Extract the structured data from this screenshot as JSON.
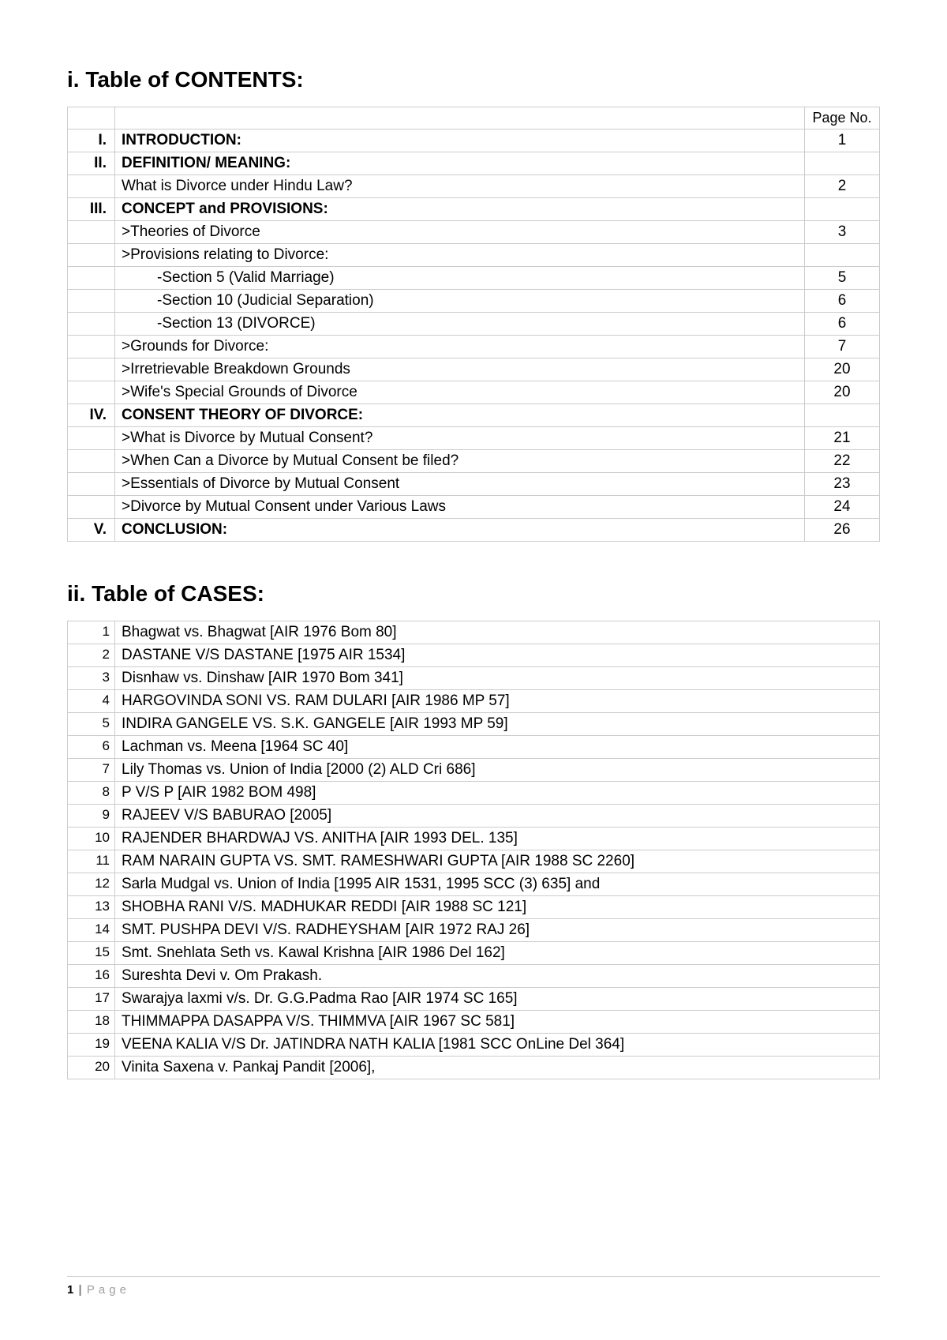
{
  "headings": {
    "toc": "i. Table of CONTENTS:",
    "cases": "ii. Table of CASES:"
  },
  "toc": {
    "pageHeaderLabel": "Page No.",
    "rows": [
      {
        "num": "I.",
        "title": "INTRODUCTION:",
        "page": "1",
        "bold": true
      },
      {
        "num": "II.",
        "title": "DEFINITION/ MEANING:",
        "page": "",
        "bold": true
      },
      {
        "num": "",
        "title": "What is Divorce under Hindu Law?",
        "page": "2",
        "bold": false
      },
      {
        "num": "III.",
        "title": "CONCEPT and PROVISIONS:",
        "page": "",
        "bold": true
      },
      {
        "num": "",
        "title": ">Theories of Divorce",
        "page": "3",
        "bold": false
      },
      {
        "num": "",
        "title": ">Provisions relating to Divorce:",
        "page": "",
        "bold": false
      },
      {
        "num": "",
        "title": "-Section 5 (Valid Marriage)",
        "page": "5",
        "bold": false,
        "indent": true
      },
      {
        "num": "",
        "title": "-Section 10 (Judicial Separation)",
        "page": "6",
        "bold": false,
        "indent": true
      },
      {
        "num": "",
        "title": "-Section 13 (DIVORCE)",
        "page": "6",
        "bold": false,
        "indent": true
      },
      {
        "num": "",
        "title": ">Grounds for Divorce:",
        "page": "7",
        "bold": false
      },
      {
        "num": "",
        "title": ">Irretrievable Breakdown Grounds",
        "page": "20",
        "bold": false
      },
      {
        "num": "",
        "title": ">Wife's Special Grounds of Divorce",
        "page": "20",
        "bold": false
      },
      {
        "num": "IV.",
        "title": "CONSENT THEORY OF DIVORCE:",
        "page": "",
        "bold": true
      },
      {
        "num": "",
        "title": ">What is Divorce by Mutual Consent?",
        "page": "21",
        "bold": false
      },
      {
        "num": "",
        "title": ">When Can a Divorce by Mutual Consent be filed?",
        "page": "22",
        "bold": false
      },
      {
        "num": "",
        "title": ">Essentials of Divorce by Mutual Consent",
        "page": "23",
        "bold": false
      },
      {
        "num": "",
        "title": ">Divorce by Mutual Consent under Various Laws",
        "page": "24",
        "bold": false
      },
      {
        "num": "V.",
        "title": "CONCLUSION:",
        "page": "26",
        "bold": true
      }
    ]
  },
  "cases": [
    {
      "n": "1",
      "name": "Bhagwat vs. Bhagwat [AIR 1976 Bom 80]"
    },
    {
      "n": "2",
      "name": "DASTANE V/S DASTANE [1975 AIR 1534]"
    },
    {
      "n": "3",
      "name": "Disnhaw vs. Dinshaw [AIR 1970 Bom 341]"
    },
    {
      "n": "4",
      "name": "HARGOVINDA SONI VS. RAM DULARI [AIR 1986 MP 57]"
    },
    {
      "n": "5",
      "name": "INDIRA GANGELE VS. S.K. GANGELE [AIR 1993 MP 59]"
    },
    {
      "n": "6",
      "name": "Lachman vs. Meena [1964 SC 40]"
    },
    {
      "n": "7",
      "name": "Lily Thomas vs. Union of India [2000 (2) ALD Cri 686]"
    },
    {
      "n": "8",
      "name": "P V/S P [AIR 1982 BOM 498]"
    },
    {
      "n": "9",
      "name": "RAJEEV V/S BABURAO [2005]"
    },
    {
      "n": "10",
      "name": "RAJENDER BHARDWAJ VS. ANITHA [AIR 1993 DEL. 135]"
    },
    {
      "n": "11",
      "name": "RAM NARAIN GUPTA VS. SMT. RAMESHWARI GUPTA [AIR 1988 SC 2260]"
    },
    {
      "n": "12",
      "name": "Sarla Mudgal vs. Union of India [1995 AIR 1531, 1995 SCC (3) 635] and"
    },
    {
      "n": "13",
      "name": "SHOBHA RANI V/S. MADHUKAR REDDI [AIR 1988 SC 121]"
    },
    {
      "n": "14",
      "name": "SMT. PUSHPA DEVI V/S. RADHEYSHAM [AIR 1972 RAJ 26]"
    },
    {
      "n": "15",
      "name": "Smt. Snehlata Seth vs. Kawal Krishna [AIR 1986 Del 162]"
    },
    {
      "n": "16",
      "name": "Sureshta Devi v. Om Prakash."
    },
    {
      "n": "17",
      "name": "Swarajya laxmi v/s. Dr. G.G.Padma Rao [AIR 1974 SC 165]"
    },
    {
      "n": "18",
      "name": "THIMMAPPA DASAPPA V/S. THIMMVA [AIR 1967 SC 581]"
    },
    {
      "n": "19",
      "name": "VEENA KALIA V/S Dr. JATINDRA NATH KALIA [1981 SCC OnLine Del 364]"
    },
    {
      "n": "20",
      "name": "Vinita Saxena v. Pankaj Pandit [2006],"
    }
  ],
  "footer": {
    "pageNumber": "1",
    "separator": "|",
    "label": "Page"
  }
}
